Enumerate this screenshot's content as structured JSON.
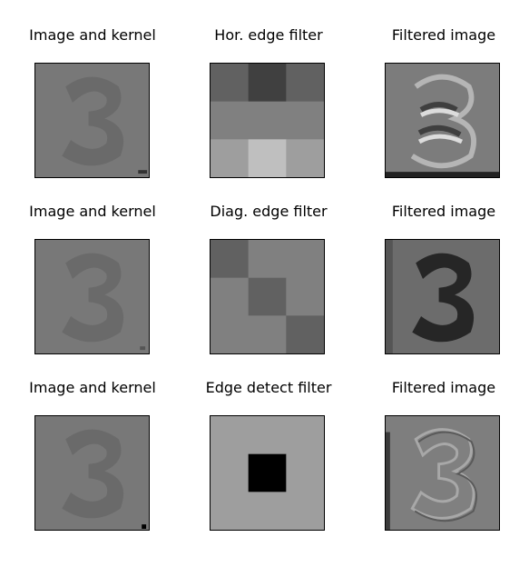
{
  "figure": {
    "rows": [
      {
        "titles": [
          "Image and kernel",
          "Hor. edge filter",
          "Filtered image"
        ],
        "kernel": [
          [
            0.38,
            0.25,
            0.38
          ],
          [
            0.5,
            0.5,
            0.5
          ],
          [
            0.62,
            0.75,
            0.62
          ]
        ]
      },
      {
        "titles": [
          "Image and kernel",
          "Diag. edge filter",
          "Filtered image"
        ],
        "kernel": [
          [
            0.38,
            0.5,
            0.5
          ],
          [
            0.5,
            0.38,
            0.5
          ],
          [
            0.5,
            0.5,
            0.38
          ]
        ]
      },
      {
        "titles": [
          "Image and kernel",
          "Edge detect filter",
          "Filtered image"
        ],
        "kernel": [
          [
            0.62,
            0.62,
            0.62
          ],
          [
            0.62,
            0.0,
            0.62
          ],
          [
            0.62,
            0.62,
            0.62
          ]
        ]
      }
    ]
  },
  "colors": {
    "image_background": "#787878",
    "digit": "#6a6a6a",
    "filtered_hor_bg": "#7c7c7c",
    "filtered_diag_digit": "#262626",
    "filtered_edge_bg": "#7e7e7e"
  }
}
